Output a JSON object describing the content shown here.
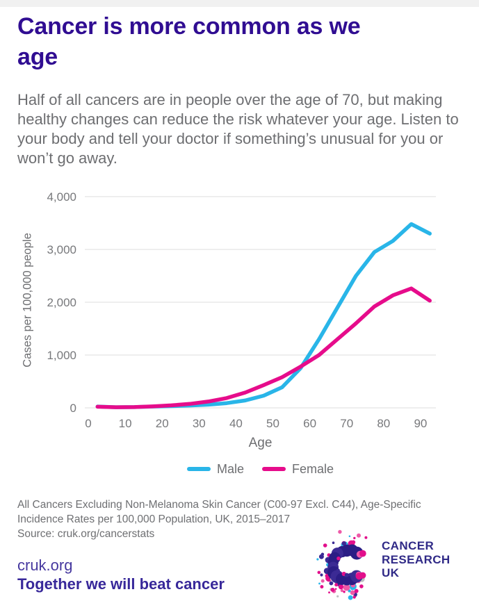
{
  "page": {
    "background": "#ffffff",
    "top_strip_color": "#f1f1f1"
  },
  "header": {
    "title": "Cancer is more common as we age",
    "title_color": "#300d92",
    "subtitle": "Half of all cancers are in people over the age of 70, but making healthy changes can reduce the risk whatever your age. Listen to your body and tell your doctor if something’s unusual for you or won’t go away."
  },
  "chart_data": {
    "type": "line",
    "title": "",
    "xlabel": "Age",
    "ylabel": "Cases per 100,000 people",
    "x": [
      2.5,
      7.5,
      12.5,
      17.5,
      22.5,
      27.5,
      32.5,
      37.5,
      42.5,
      47.5,
      52.5,
      57.5,
      62.5,
      67.5,
      72.5,
      77.5,
      82.5,
      87.5,
      92.5
    ],
    "series": [
      {
        "name": "Male",
        "color": "#29b5e8",
        "values": [
          25,
          12,
          14,
          25,
          33,
          45,
          60,
          90,
          140,
          230,
          390,
          750,
          1300,
          1900,
          2500,
          2950,
          3160,
          3480,
          3300
        ]
      },
      {
        "name": "Female",
        "color": "#e60c8b",
        "values": [
          21,
          12,
          15,
          28,
          48,
          75,
          120,
          185,
          290,
          430,
          580,
          780,
          1000,
          1300,
          1600,
          1920,
          2130,
          2260,
          2030
        ]
      }
    ],
    "xlim": [
      0,
      94
    ],
    "ylim": [
      0,
      4000
    ],
    "xticks": [
      0,
      10,
      20,
      30,
      40,
      50,
      60,
      70,
      80,
      90
    ],
    "yticks": [
      0,
      1000,
      2000,
      3000,
      4000
    ],
    "ytick_labels": [
      "0",
      "1,000",
      "2,000",
      "3,000",
      "4,000"
    ],
    "grid": "horizontal",
    "gridline_color": "#e3e3e4",
    "axis_text_color": "#77787b",
    "legend_position": "bottom"
  },
  "footnote": {
    "lines": [
      "All Cancers Excluding Non-Melanoma Skin Cancer (C00-97 Excl. C44), Age-Specific",
      "Incidence Rates per 100,000 Population, UK, 2015–2017",
      "Source: cruk.org/cancerstats"
    ]
  },
  "footer": {
    "site": "cruk.org",
    "tagline": "Together we will beat cancer"
  },
  "logo": {
    "lines": [
      "CANCER",
      "RESEARCH",
      "UK"
    ],
    "text_color": "#302a87",
    "dot_colors": {
      "dark_purple": "#2b1d85",
      "purple": "#3b2a94",
      "pink": "#e20f8b",
      "light_pink": "#ee5aa8",
      "blue": "#2ab6e9",
      "gray": "#bcbec0"
    }
  }
}
